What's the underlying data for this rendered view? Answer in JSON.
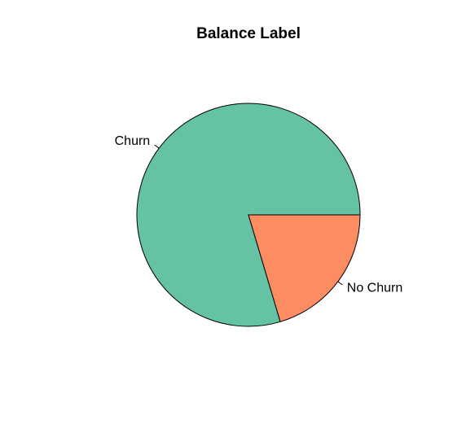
{
  "chart_data": {
    "type": "pie",
    "title": "Balance Label",
    "labels": [
      "Churn",
      "No Churn"
    ],
    "values": [
      79.6,
      20.4
    ],
    "colors": [
      "#66C2A5",
      "#FC8D62"
    ],
    "start_angle_deg": 0,
    "direction": "counterclockwise",
    "outline_color": "#000000",
    "legend": "none"
  }
}
